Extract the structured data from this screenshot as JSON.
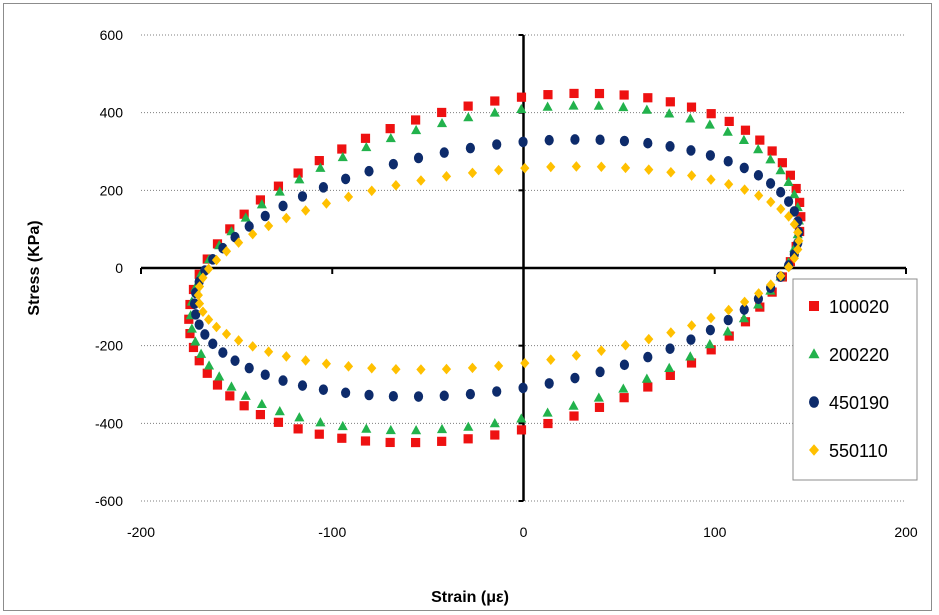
{
  "chart_data": {
    "type": "scatter",
    "xlabel": "Strain (με)",
    "ylabel": "Stress (KPa)",
    "xlim": [
      -200,
      200
    ],
    "ylim": [
      -600,
      600
    ],
    "xticks": [
      -200,
      -100,
      0,
      100,
      200
    ],
    "yticks": [
      -600,
      -400,
      -200,
      0,
      200,
      400,
      600
    ],
    "grid": "horizontal dotted",
    "legend": "right",
    "series": [
      {
        "name": "100020",
        "color": "#ee1111",
        "marker": "square",
        "cx": -15,
        "cy": 0,
        "a": 160,
        "b": 430,
        "tilt": 132,
        "n": 72
      },
      {
        "name": "200220",
        "color": "#22b24c",
        "marker": "triangle",
        "cx": -15,
        "cy": 0,
        "a": 159,
        "b": 400,
        "tilt": 122,
        "n": 72
      },
      {
        "name": "450190",
        "color": "#0d2b6b",
        "marker": "circle",
        "cx": -14,
        "cy": 0,
        "a": 158,
        "b": 318,
        "tilt": 92,
        "n": 72
      },
      {
        "name": "550110",
        "color": "#ffc000",
        "marker": "diamond",
        "cx": -13,
        "cy": 0,
        "a": 157,
        "b": 252,
        "tilt": 70,
        "n": 72
      }
    ]
  }
}
